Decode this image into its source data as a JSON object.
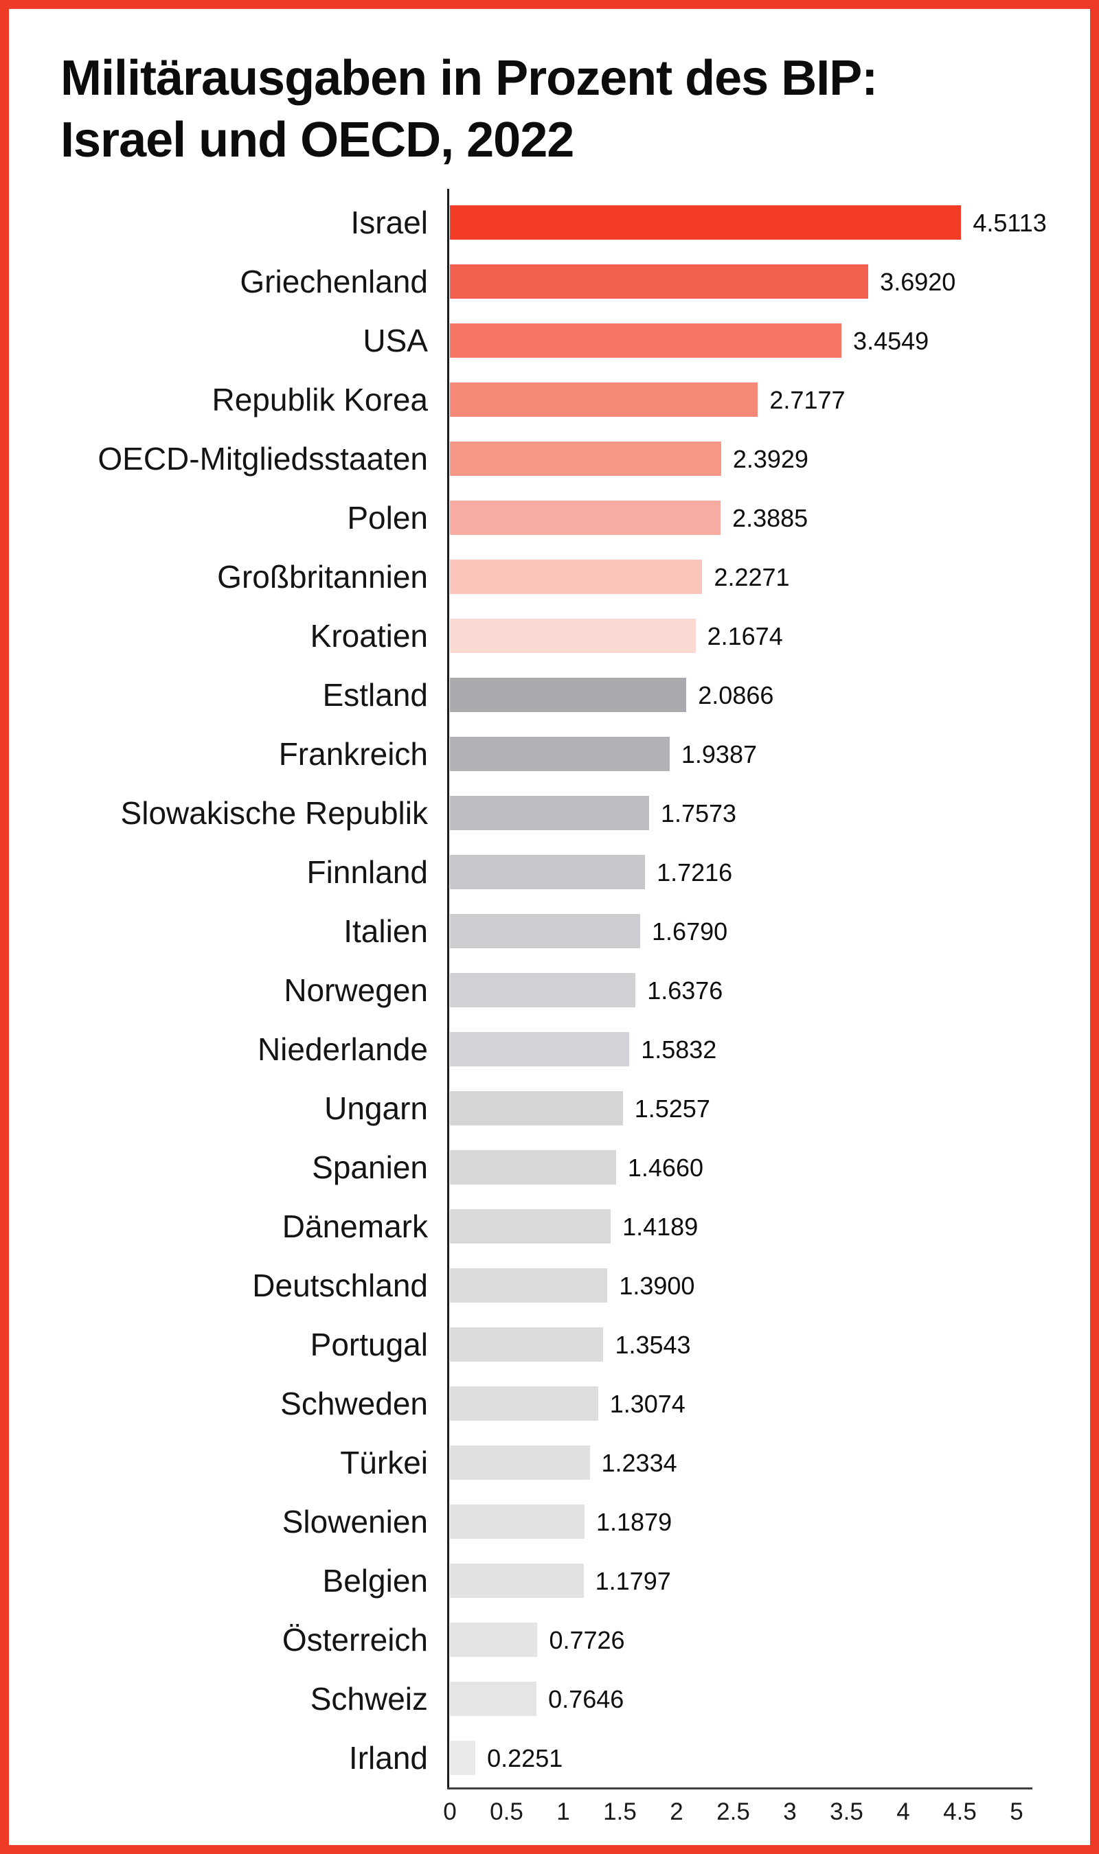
{
  "title": {
    "line1": "Militärausgaben in Prozent des BIP:",
    "line2": "Israel und OECD, 2022"
  },
  "colors": {
    "frame_border": "#ee3c27",
    "y_axis_line": "#1c1c1c",
    "x_axis_line": "#3c4043",
    "background": "#ffffff",
    "title_text": "#0c0c0c",
    "label_text": "#141414"
  },
  "chart_data": {
    "type": "bar",
    "orientation": "horizontal",
    "title": "Militärausgaben in Prozent des BIP: Israel und OECD, 2022",
    "categories": [
      "Israel",
      "Griechenland",
      "USA",
      "Republik Korea",
      "OECD-Mitgliedsstaaten",
      "Polen",
      "Großbritannien",
      "Kroatien",
      "Estland",
      "Frankreich",
      "Slowakische Republik",
      "Finnland",
      "Italien",
      "Norwegen",
      "Niederlande",
      "Ungarn",
      "Spanien",
      "Dänemark",
      "Deutschland",
      "Portugal",
      "Schweden",
      "Türkei",
      "Slowenien",
      "Belgien",
      "Österreich",
      "Schweiz",
      "Irland"
    ],
    "values": [
      4.5113,
      3.692,
      3.4549,
      2.7177,
      2.3929,
      2.3885,
      2.2271,
      2.1674,
      2.0866,
      1.9387,
      1.7573,
      1.7216,
      1.679,
      1.6376,
      1.5832,
      1.5257,
      1.466,
      1.4189,
      1.39,
      1.3543,
      1.3074,
      1.2334,
      1.1879,
      1.1797,
      0.7726,
      0.7646,
      0.2251
    ],
    "value_labels": [
      "4.5113",
      "3.6920",
      "3.4549",
      "2.7177",
      "2.3929",
      "2.3885",
      "2.2271",
      "2.1674",
      "2.0866",
      "1.9387",
      "1.7573",
      "1.7216",
      "1.6790",
      "1.6376",
      "1.5832",
      "1.5257",
      "1.4660",
      "1.4189",
      "1.3900",
      "1.3543",
      "1.3074",
      "1.2334",
      "1.1879",
      "1.1797",
      "0.7726",
      "0.7646",
      "0.2251"
    ],
    "bar_colors": [
      "#f23c26",
      "#f2614f",
      "#f47563",
      "#f68878",
      "#f69786",
      "#f8aba0",
      "#fac4bb",
      "#fcd8d2",
      "#a9aaae",
      "#b1b2b6",
      "#bcbec2",
      "#c6c7ca",
      "#cdced1",
      "#d0d1d4",
      "#d2d3d6",
      "#d4d5d7",
      "#d6d7d9",
      "#d8d9db",
      "#dadbdd",
      "#dbdcde",
      "#dddee0",
      "#dee0e1",
      "#e0e1e3",
      "#e1e2e4",
      "#e3e4e6",
      "#e4e5e7",
      "#e8e9eb"
    ],
    "xlim": [
      0,
      5
    ],
    "x_ticks": [
      0,
      0.5,
      1,
      1.5,
      2,
      2.5,
      3,
      3.5,
      4,
      4.5,
      5
    ],
    "x_tick_labels": [
      "0",
      "0.5",
      "1",
      "1.5",
      "2",
      "2.5",
      "3",
      "3.5",
      "4",
      "4.5",
      "5"
    ],
    "grid": false,
    "legend": false
  }
}
